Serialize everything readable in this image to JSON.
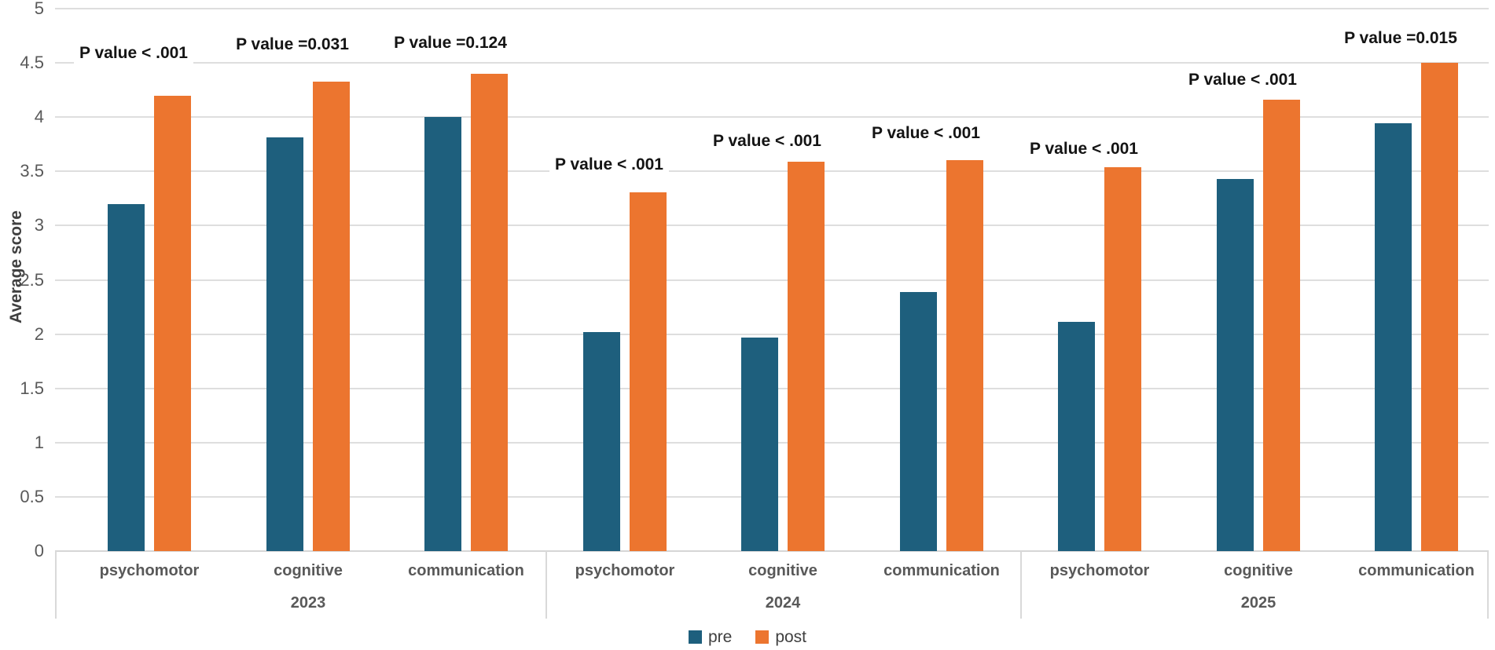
{
  "chart_data": {
    "type": "bar",
    "title": "",
    "ylabel": "Average score",
    "xlabel": "",
    "ylim": [
      0,
      5
    ],
    "yticks": [
      "5",
      "4.5",
      "4",
      "3.5",
      "3",
      "2.5",
      "2",
      "1.5",
      "1",
      "0.5",
      "0"
    ],
    "grid": true,
    "legend_position": "bottom",
    "series_names": [
      "pre",
      "post"
    ],
    "colors": {
      "pre": "#1E5F7D",
      "post": "#EC752F",
      "gridline": "#DEDEDE",
      "axis_text": "#595959",
      "p_label_text": "#141414"
    },
    "groups": [
      {
        "year": "2023",
        "items": [
          {
            "category": "psychomotor",
            "pre": 3.2,
            "post": 4.2,
            "p_label": "P value < .001"
          },
          {
            "category": "cognitive",
            "pre": 3.81,
            "post": 4.33,
            "p_label": "P value =0.031"
          },
          {
            "category": "communication",
            "pre": 4.0,
            "post": 4.4,
            "p_label": "P value =0.124"
          }
        ]
      },
      {
        "year": "2024",
        "items": [
          {
            "category": "psychomotor",
            "pre": 2.02,
            "post": 3.31,
            "p_label": "P value < .001"
          },
          {
            "category": "cognitive",
            "pre": 1.97,
            "post": 3.59,
            "p_label": "P value < .001"
          },
          {
            "category": "communication",
            "pre": 2.39,
            "post": 3.6,
            "p_label": "P value < .001"
          }
        ]
      },
      {
        "year": "2025",
        "items": [
          {
            "category": "psychomotor",
            "pre": 2.11,
            "post": 3.54,
            "p_label": "P value < .001"
          },
          {
            "category": "cognitive",
            "pre": 3.43,
            "post": 4.16,
            "p_label": "P value < .001"
          },
          {
            "category": "communication",
            "pre": 3.94,
            "post": 4.5,
            "p_label": "P value =0.015"
          }
        ]
      }
    ],
    "legend": [
      {
        "name": "pre",
        "color": "#1E5F7D"
      },
      {
        "name": "post",
        "color": "#EC752F"
      }
    ]
  }
}
